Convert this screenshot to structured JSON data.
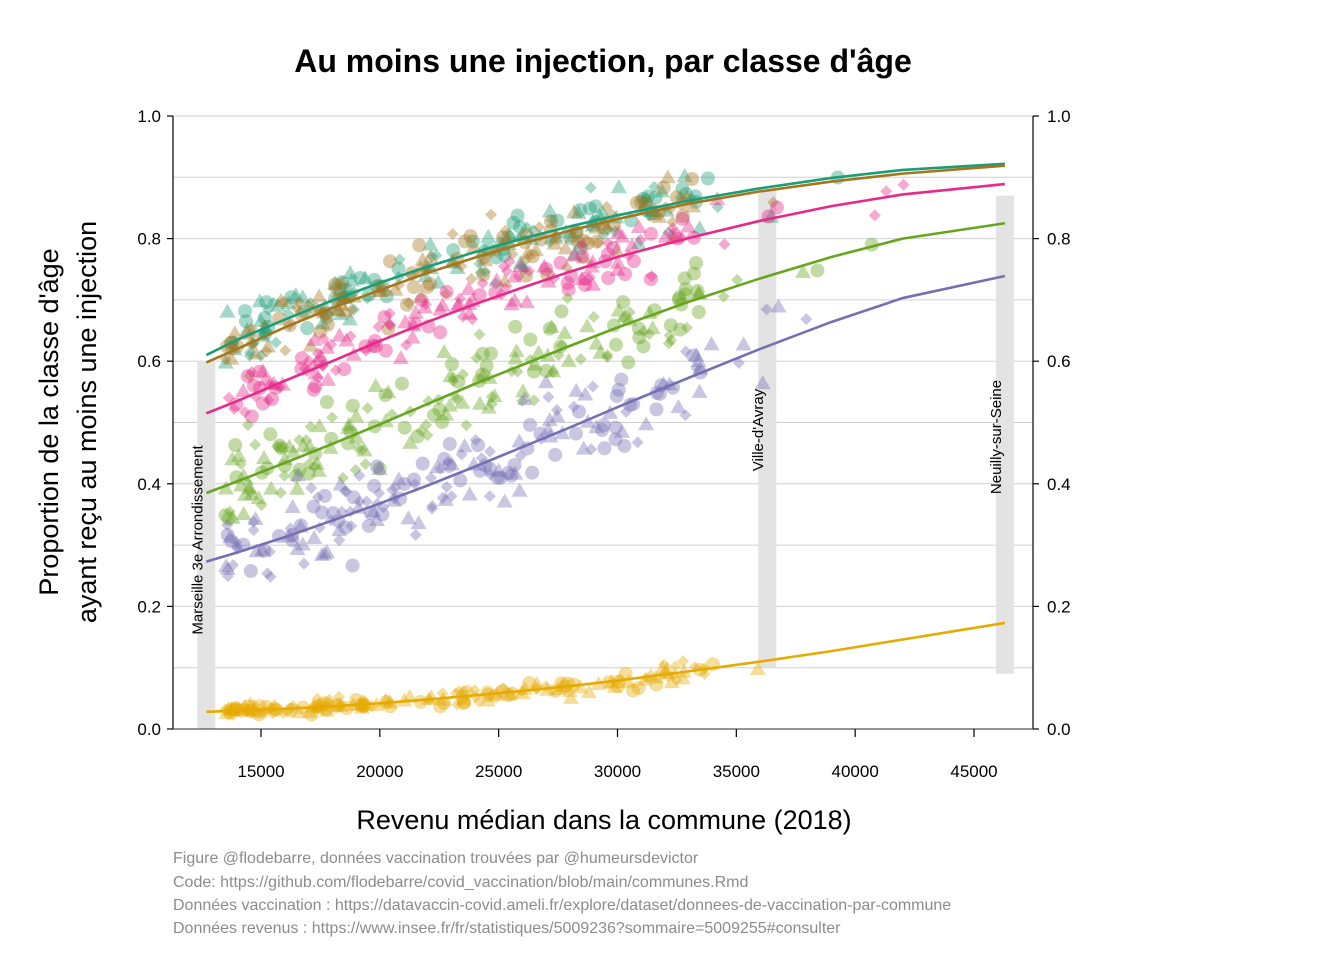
{
  "chart_data": {
    "type": "scatter",
    "title": "Au moins une injection, par classe d'âge",
    "xlabel": "Revenu médian dans la commune (2018)",
    "ylabel_lines": [
      "Proportion de la classe d'âge",
      "ayant reçu au moins une injection"
    ],
    "xlim": [
      11500,
      47500
    ],
    "ylim": [
      0.0,
      1.0
    ],
    "x_ticks": [
      15000,
      20000,
      25000,
      30000,
      35000,
      40000,
      45000
    ],
    "y_ticks": [
      0.0,
      0.2,
      0.4,
      0.6,
      0.8,
      1.0
    ],
    "y_tick_labels": [
      "0.0",
      "0.2",
      "0.4",
      "0.6",
      "0.8",
      "1.0"
    ],
    "grid_major_y": [
      0.0,
      0.2,
      0.4,
      0.6,
      0.8,
      1.0
    ],
    "grid_minor_y": [
      0.1,
      0.3,
      0.5,
      0.7,
      0.9
    ],
    "secondary_y_axis": true,
    "marker_shapes": [
      "circle",
      "triangle",
      "diamond"
    ],
    "marker_opacity": 0.4,
    "series": [
      {
        "color": "#d95f02",
        "display": "#1b9e77",
        "fit": [
          [
            12700,
            0.61
          ],
          [
            14000,
            0.635
          ],
          [
            16000,
            0.668
          ],
          [
            18000,
            0.699
          ],
          [
            20000,
            0.728
          ],
          [
            22000,
            0.754
          ],
          [
            24000,
            0.778
          ],
          [
            26000,
            0.8
          ],
          [
            28000,
            0.82
          ],
          [
            30000,
            0.838
          ],
          [
            33000,
            0.862
          ],
          [
            36000,
            0.882
          ],
          [
            39000,
            0.899
          ],
          [
            42000,
            0.912
          ],
          [
            46300,
            0.922
          ]
        ]
      },
      {
        "color": "#a6761d",
        "fit": [
          [
            12700,
            0.598
          ],
          [
            14000,
            0.62
          ],
          [
            16000,
            0.655
          ],
          [
            18000,
            0.687
          ],
          [
            20000,
            0.716
          ],
          [
            22000,
            0.744
          ],
          [
            24000,
            0.769
          ],
          [
            26000,
            0.792
          ],
          [
            28000,
            0.813
          ],
          [
            30000,
            0.832
          ],
          [
            33000,
            0.857
          ],
          [
            36000,
            0.877
          ],
          [
            39000,
            0.893
          ],
          [
            42000,
            0.906
          ],
          [
            46300,
            0.919
          ]
        ]
      },
      {
        "color": "#e7298a",
        "fit": [
          [
            12700,
            0.515
          ],
          [
            14000,
            0.535
          ],
          [
            16000,
            0.568
          ],
          [
            18000,
            0.6
          ],
          [
            20000,
            0.633
          ],
          [
            22000,
            0.664
          ],
          [
            24000,
            0.693
          ],
          [
            26000,
            0.72
          ],
          [
            28000,
            0.746
          ],
          [
            30000,
            0.77
          ],
          [
            33000,
            0.801
          ],
          [
            36000,
            0.829
          ],
          [
            39000,
            0.853
          ],
          [
            42000,
            0.872
          ],
          [
            46300,
            0.889
          ]
        ]
      },
      {
        "color": "#66a61e",
        "fit": [
          [
            12700,
            0.385
          ],
          [
            14000,
            0.404
          ],
          [
            16000,
            0.434
          ],
          [
            18000,
            0.465
          ],
          [
            20000,
            0.497
          ],
          [
            22000,
            0.53
          ],
          [
            24000,
            0.563
          ],
          [
            26000,
            0.594
          ],
          [
            28000,
            0.625
          ],
          [
            30000,
            0.655
          ],
          [
            33000,
            0.697
          ],
          [
            36000,
            0.735
          ],
          [
            39000,
            0.77
          ],
          [
            42000,
            0.8
          ],
          [
            46300,
            0.825
          ]
        ]
      },
      {
        "color": "#7570b3",
        "fit": [
          [
            12700,
            0.273
          ],
          [
            14000,
            0.288
          ],
          [
            16000,
            0.313
          ],
          [
            18000,
            0.34
          ],
          [
            20000,
            0.368
          ],
          [
            22000,
            0.397
          ],
          [
            24000,
            0.428
          ],
          [
            26000,
            0.46
          ],
          [
            28000,
            0.492
          ],
          [
            30000,
            0.525
          ],
          [
            33000,
            0.573
          ],
          [
            36000,
            0.62
          ],
          [
            39000,
            0.664
          ],
          [
            42000,
            0.703
          ],
          [
            46300,
            0.739
          ]
        ]
      },
      {
        "color": "#e6ab02",
        "fit": [
          [
            12700,
            0.028
          ],
          [
            14000,
            0.03
          ],
          [
            16000,
            0.033
          ],
          [
            18000,
            0.037
          ],
          [
            20000,
            0.042
          ],
          [
            22000,
            0.048
          ],
          [
            24000,
            0.055
          ],
          [
            26000,
            0.062
          ],
          [
            28000,
            0.07
          ],
          [
            30000,
            0.079
          ],
          [
            33000,
            0.094
          ],
          [
            36000,
            0.11
          ],
          [
            39000,
            0.127
          ],
          [
            42000,
            0.146
          ],
          [
            46300,
            0.173
          ]
        ]
      }
    ],
    "series_fit_colors": [
      "#1b9e77",
      "#a6761d",
      "#e7298a",
      "#66a61e",
      "#7570b3",
      "#e6ab02"
    ],
    "highlight_communes": [
      {
        "label": "Marseille 3e Arrondissement",
        "x": 12700,
        "y_range": [
          0.0,
          0.6
        ]
      },
      {
        "label": "Ville-d'Avray",
        "x": 36300,
        "y_range": [
          0.1,
          0.88
        ]
      },
      {
        "label": "Neuilly-sur-Seine",
        "x": 46300,
        "y_range": [
          0.09,
          0.87
        ]
      }
    ],
    "point_cloud_note": "Dense cloud of ~1000 points per age class scattered around each fitted curve; individual values not recoverable."
  },
  "caption": {
    "line1": "Figure @flodebarre, données vaccination trouvées par @humeursdevictor",
    "line2": "Code: https://github.com/flodebarre/covid_vaccination/blob/main/communes.Rmd",
    "line3": "Données vaccination : https://datavaccin-covid.ameli.fr/explore/dataset/donnees-de-vaccination-par-commune",
    "line4": "Données revenus : https://www.insee.fr/fr/statistiques/5009236?sommaire=5009255#consulter"
  }
}
